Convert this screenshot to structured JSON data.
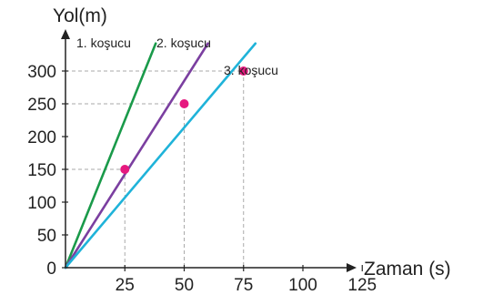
{
  "chart_data": {
    "type": "line",
    "title": "",
    "xlabel": "Zaman (s)",
    "ylabel": "Yol(m)",
    "xlim": [
      0,
      125
    ],
    "ylim": [
      0,
      300
    ],
    "x_ticks": [
      25,
      50,
      75,
      100,
      125
    ],
    "y_ticks": [
      0,
      50,
      100,
      150,
      200,
      250,
      300
    ],
    "grid": false,
    "series": [
      {
        "name": "1. koşucu",
        "color": "#1a9a4a",
        "x": [
          0,
          38
        ],
        "y": [
          0,
          342
        ]
      },
      {
        "name": "2. koşucu",
        "color": "#7b3fa0",
        "x": [
          0,
          60
        ],
        "y": [
          0,
          342
        ]
      },
      {
        "name": "3. koşucu",
        "color": "#1fb3d9",
        "x": [
          0,
          80
        ],
        "y": [
          0,
          342
        ]
      }
    ],
    "markers": {
      "color": "#e6197f",
      "points": [
        {
          "x": 25,
          "y": 150
        },
        {
          "x": 50,
          "y": 250
        },
        {
          "x": 75,
          "y": 300
        }
      ]
    }
  }
}
